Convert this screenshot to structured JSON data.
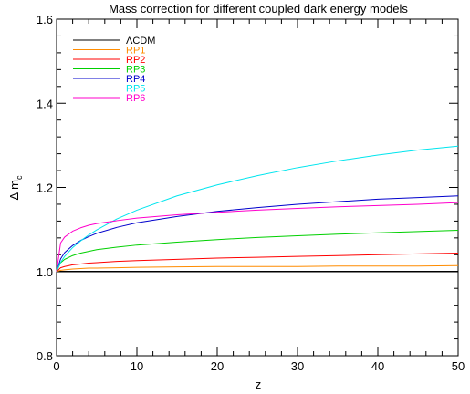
{
  "chart_data": {
    "type": "line",
    "title": "Mass correction for different coupled dark energy models",
    "xlabel": "z",
    "ylabel": "Δ m",
    "ylabel_subscript": "c",
    "xlim": [
      0,
      50
    ],
    "ylim": [
      0.8,
      1.6
    ],
    "xticks": [
      0,
      10,
      20,
      30,
      40,
      50
    ],
    "xtick_labels": [
      "0",
      "10",
      "20",
      "30",
      "40",
      "50"
    ],
    "yticks": [
      0.8,
      1.0,
      1.2,
      1.4,
      1.6
    ],
    "ytick_labels": [
      "0.8",
      "1.0",
      "1.2",
      "1.4",
      "1.6"
    ],
    "grid": false,
    "legend_position": "top-left",
    "x": [
      0,
      0.5,
      1,
      2,
      3,
      4,
      5,
      7.5,
      10,
      15,
      20,
      25,
      30,
      35,
      40,
      45,
      50
    ],
    "series": [
      {
        "name": "ΛCDM",
        "color": "#000000",
        "values": [
          1.0,
          1.0,
          1.0,
          1.0,
          1.0,
          1.0,
          1.0,
          1.0,
          1.0,
          1.0,
          1.0,
          1.0,
          1.0,
          1.0,
          1.0,
          1.0,
          1.0
        ]
      },
      {
        "name": "RP1",
        "color": "#ff8c00",
        "values": [
          1.0,
          1.003,
          1.004,
          1.006,
          1.007,
          1.008,
          1.008,
          1.009,
          1.01,
          1.011,
          1.012,
          1.012,
          1.012,
          1.013,
          1.013,
          1.013,
          1.014
        ]
      },
      {
        "name": "RP2",
        "color": "#ff0000",
        "values": [
          1.0,
          1.009,
          1.012,
          1.016,
          1.018,
          1.02,
          1.021,
          1.024,
          1.026,
          1.029,
          1.032,
          1.034,
          1.036,
          1.038,
          1.04,
          1.042,
          1.044
        ]
      },
      {
        "name": "RP3",
        "color": "#00d000",
        "values": [
          1.0,
          1.021,
          1.029,
          1.038,
          1.044,
          1.048,
          1.052,
          1.058,
          1.063,
          1.07,
          1.076,
          1.081,
          1.085,
          1.089,
          1.092,
          1.095,
          1.098
        ]
      },
      {
        "name": "RP4",
        "color": "#0000cc",
        "values": [
          1.0,
          1.03,
          1.045,
          1.062,
          1.074,
          1.083,
          1.091,
          1.105,
          1.116,
          1.131,
          1.143,
          1.152,
          1.16,
          1.166,
          1.172,
          1.176,
          1.18
        ]
      },
      {
        "name": "RP5",
        "color": "#00e5ee",
        "values": [
          1.0,
          1.022,
          1.036,
          1.057,
          1.073,
          1.087,
          1.099,
          1.125,
          1.146,
          1.18,
          1.206,
          1.228,
          1.247,
          1.263,
          1.277,
          1.289,
          1.298
        ]
      },
      {
        "name": "RP6",
        "color": "#ff00cc",
        "values": [
          1.0,
          1.068,
          1.082,
          1.096,
          1.104,
          1.11,
          1.114,
          1.121,
          1.127,
          1.135,
          1.141,
          1.146,
          1.15,
          1.154,
          1.157,
          1.16,
          1.164
        ]
      }
    ]
  }
}
